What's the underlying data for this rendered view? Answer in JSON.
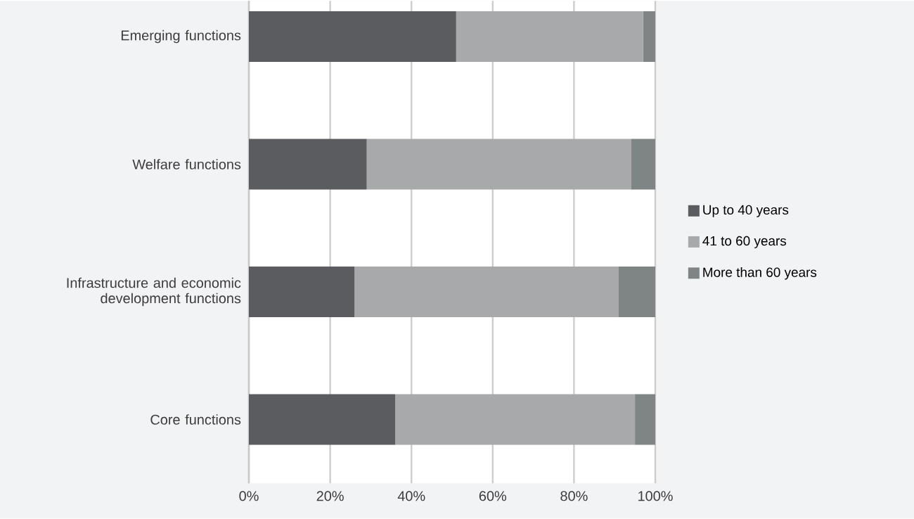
{
  "chart_data": {
    "type": "bar",
    "orientation": "horizontal",
    "stacked": true,
    "categories": [
      "Emerging functions",
      "Welfare functions",
      "Infrastructure and economic development functions",
      "Core functions"
    ],
    "series": [
      {
        "name": "Up to 40 years",
        "color": "#5b5c60",
        "values": [
          51,
          29,
          26,
          36
        ]
      },
      {
        "name": "41 to 60 years",
        "color": "#a7a9aa",
        "values": [
          46,
          65,
          65,
          59
        ]
      },
      {
        "name": "More than 60 years",
        "color": "#7f8485",
        "values": [
          3,
          6,
          9,
          5
        ]
      }
    ],
    "xlim": [
      0,
      100
    ],
    "xticks": [
      {
        "value": 0,
        "label": "0%"
      },
      {
        "value": 20,
        "label": "20%"
      },
      {
        "value": 40,
        "label": "40%"
      },
      {
        "value": 60,
        "label": "60%"
      },
      {
        "value": 80,
        "label": "80%"
      },
      {
        "value": 100,
        "label": "100%"
      }
    ],
    "grid": "x",
    "legend": "right"
  }
}
